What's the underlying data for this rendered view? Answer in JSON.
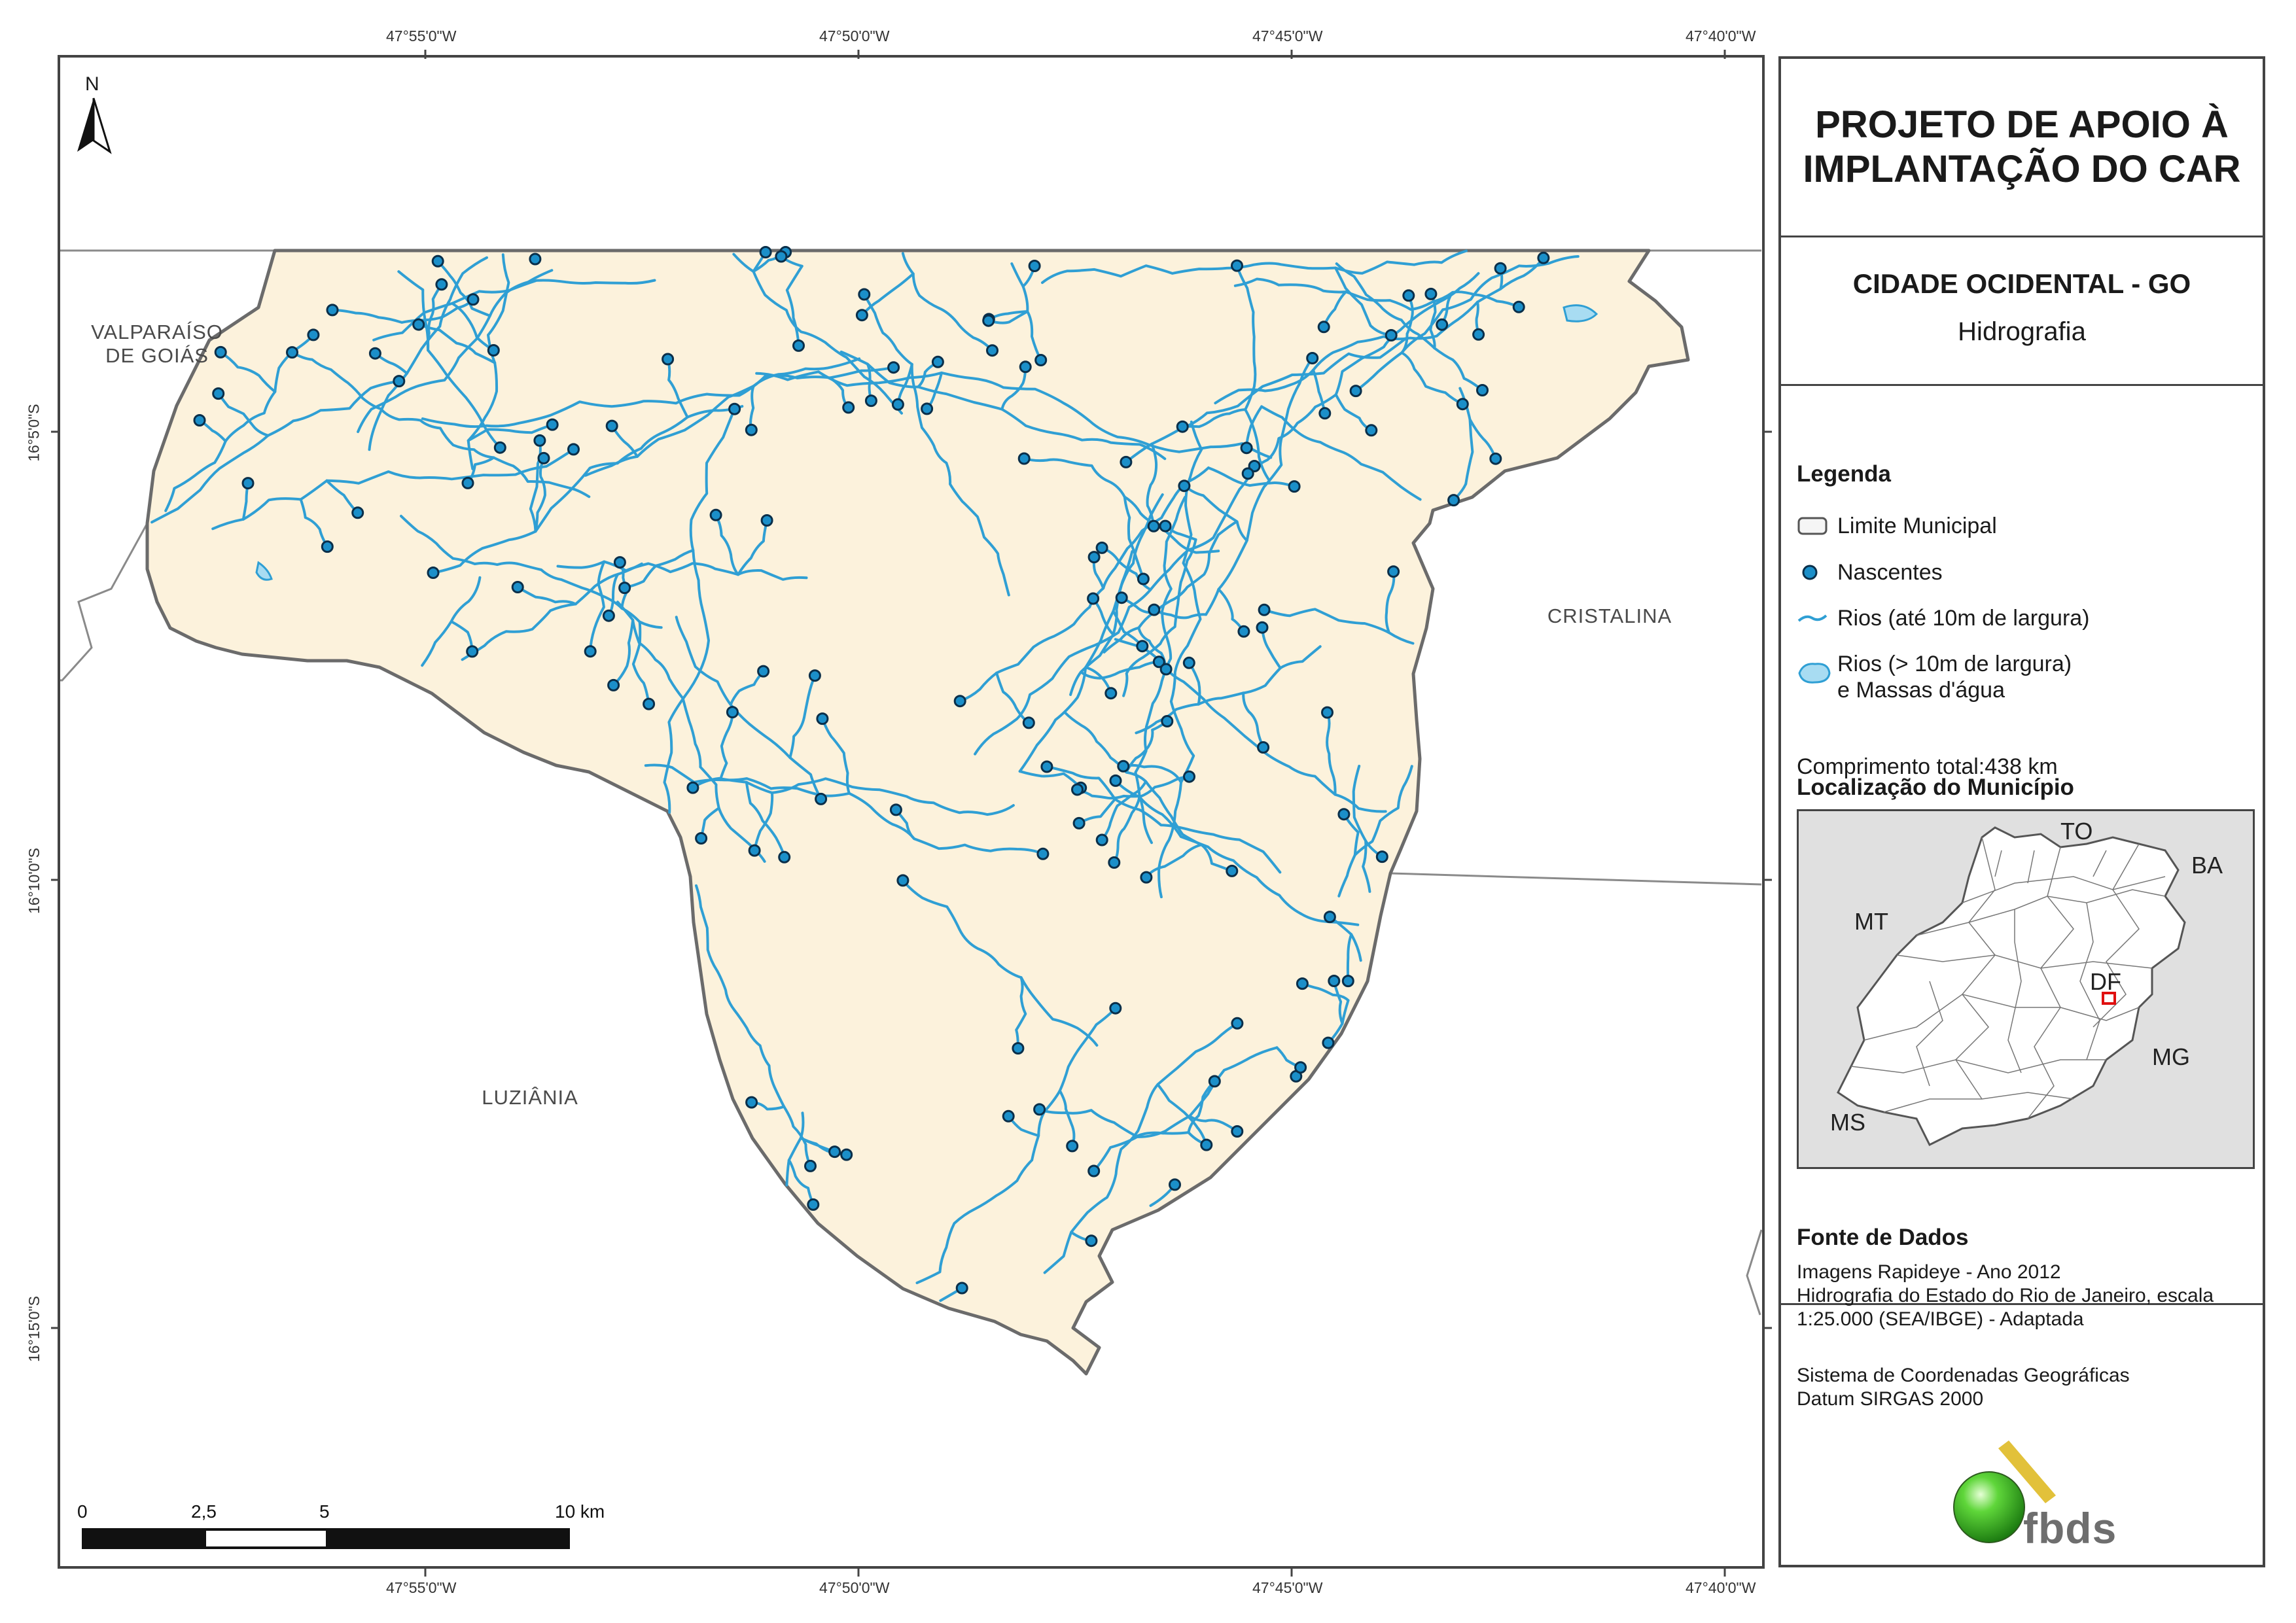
{
  "coords": {
    "top": [
      "47°55'0\"W",
      "47°50'0\"W",
      "47°45'0\"W",
      "47°40'0\"W"
    ],
    "bottom": [
      "47°55'0\"W",
      "47°50'0\"W",
      "47°45'0\"W",
      "47°40'0\"W"
    ],
    "left": [
      "16°5'0\"S",
      "16°10'0\"S",
      "16°15'0\"S"
    ]
  },
  "north_label": "N",
  "neighbors": {
    "valparaiso_1": "VALPARAÍSO",
    "valparaiso_2": "DE GOIÁS",
    "cristalina": "CRISTALINA",
    "luziania": "LUZIÂNIA"
  },
  "scale": {
    "labels": [
      "0",
      "2,5",
      "5",
      "10 km"
    ]
  },
  "panel": {
    "title_line1": "PROJETO DE APOIO À",
    "title_line2": "IMPLANTAÇÃO DO CAR",
    "municipio": "CIDADE OCIDENTAL - GO",
    "theme": "Hidrografia",
    "legend_title": "Legenda",
    "legend": {
      "limite": "Limite Municipal",
      "nascentes": "Nascentes",
      "rios_small": "Rios (até 10m de largura)",
      "rios_large_1": "Rios (> 10m de largura)",
      "rios_large_2": "e Massas d'água"
    },
    "comprimento": "Comprimento total:438 km",
    "localizacao_title": "Localização do Município",
    "inset_labels": {
      "to": "TO",
      "ba": "BA",
      "mt": "MT",
      "df": "DF",
      "mg": "MG",
      "ms": "MS"
    },
    "fonte_title": "Fonte de Dados",
    "fonte_lines": [
      "Imagens Rapideye - Ano 2012",
      "Hidrografia do Estado do Rio de Janeiro, escala",
      "1:25.000 (SEA/IBGE) - Adaptada"
    ],
    "sistema_lines": [
      "Sistema de Coordenadas Geográficas",
      "Datum SIRGAS 2000"
    ],
    "logo_text": "fbds"
  },
  "colors": {
    "municipality_fill": "#fcf2dc",
    "river": "#2f9fd4",
    "spring": "#1b8fc9",
    "spring_outline": "#0a2f4a",
    "boundary": "#666666",
    "inset_bg": "#e0e0e0",
    "highlight": "#e01010",
    "logo_green": "#3bbf1f",
    "logo_gold": "#e2c13a"
  }
}
